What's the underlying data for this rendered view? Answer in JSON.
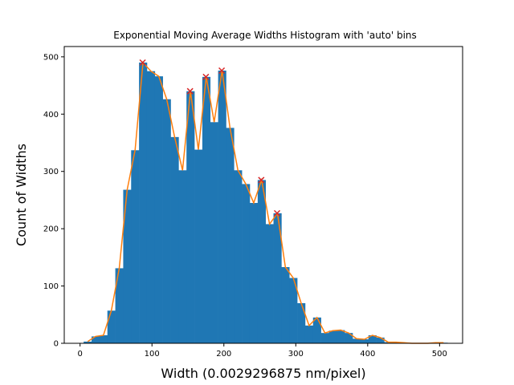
{
  "chart_data": {
    "type": "bar",
    "title": "Exponential Moving Average Widths Histogram with 'auto' bins",
    "xlabel": "Width (0.0029296875 nm/pixel)",
    "ylabel": "Count of Widths",
    "xlim": [
      -22,
      532
    ],
    "ylim": [
      0,
      518
    ],
    "xticks": [
      0,
      100,
      200,
      300,
      400,
      500
    ],
    "yticks": [
      0,
      100,
      200,
      300,
      400,
      500
    ],
    "grid": false,
    "bin_start": 5,
    "bin_width": 11,
    "bar_color": "#1f77b4",
    "line_color": "#ff7f0e",
    "peak_color": "#d62728",
    "counts": [
      3,
      12,
      14,
      57,
      131,
      268,
      337,
      490,
      475,
      466,
      426,
      360,
      302,
      440,
      338,
      465,
      386,
      476,
      376,
      302,
      278,
      245,
      285,
      208,
      227,
      133,
      114,
      70,
      31,
      45,
      18,
      22,
      23,
      18,
      8,
      7,
      14,
      10,
      2,
      2,
      1,
      0,
      0,
      0,
      1,
      1
    ],
    "peaks": [
      {
        "x": 87,
        "y": 490
      },
      {
        "x": 153,
        "y": 440
      },
      {
        "x": 175,
        "y": 465
      },
      {
        "x": 197,
        "y": 476
      },
      {
        "x": 252,
        "y": 285
      },
      {
        "x": 274,
        "y": 227
      }
    ]
  }
}
